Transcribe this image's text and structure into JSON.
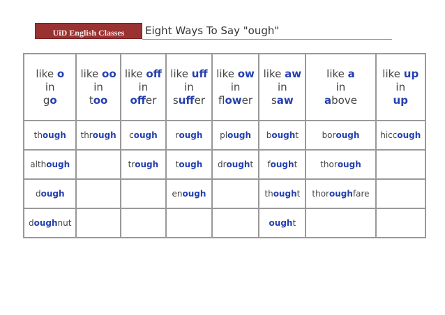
{
  "header": {
    "badge": "UiD English Classes",
    "title": "Eight Ways To Say \"ough\""
  },
  "accent": "#2440b0",
  "badge_color": "#9b3232",
  "columns": [
    {
      "like": "like",
      "sound": "o",
      "in": "in",
      "pre": "g",
      "hi": "o",
      "post": ""
    },
    {
      "like": "like",
      "sound": "oo",
      "in": "in",
      "pre": "t",
      "hi": "oo",
      "post": ""
    },
    {
      "like": "like",
      "sound": "off",
      "in": "in",
      "pre": "",
      "hi": "off",
      "post": "er"
    },
    {
      "like": "like",
      "sound": "uff",
      "in": "in",
      "pre": "s",
      "hi": "uff",
      "post": "er"
    },
    {
      "like": "like",
      "sound": "ow",
      "in": "in",
      "pre": "fl",
      "hi": "ow",
      "post": "er"
    },
    {
      "like": "like",
      "sound": "aw",
      "in": "in",
      "pre": "s",
      "hi": "aw",
      "post": ""
    },
    {
      "like": "like",
      "sound": "a",
      "in": "in",
      "pre": "",
      "hi": "a",
      "post": "bove"
    },
    {
      "like": "like",
      "sound": "up",
      "in": "in",
      "pre": "",
      "hi": "up",
      "post": ""
    }
  ],
  "rows": [
    [
      {
        "pre": "th",
        "hi": "ough",
        "post": ""
      },
      {
        "pre": "thr",
        "hi": "ough",
        "post": ""
      },
      {
        "pre": "c",
        "hi": "ough",
        "post": ""
      },
      {
        "pre": "r",
        "hi": "ough",
        "post": ""
      },
      {
        "pre": "pl",
        "hi": "ough",
        "post": ""
      },
      {
        "pre": "b",
        "hi": "ough",
        "post": "t"
      },
      {
        "pre": "bor",
        "hi": "ough",
        "post": ""
      },
      {
        "pre": "hicc",
        "hi": "ough",
        "post": ""
      }
    ],
    [
      {
        "pre": "alth",
        "hi": "ough",
        "post": ""
      },
      null,
      {
        "pre": "tr",
        "hi": "ough",
        "post": ""
      },
      {
        "pre": "t",
        "hi": "ough",
        "post": ""
      },
      {
        "pre": "dr",
        "hi": "ough",
        "post": "t"
      },
      {
        "pre": "f",
        "hi": "ough",
        "post": "t"
      },
      {
        "pre": "thor",
        "hi": "ough",
        "post": ""
      },
      null
    ],
    [
      {
        "pre": "d",
        "hi": "ough",
        "post": ""
      },
      null,
      null,
      {
        "pre": "en",
        "hi": "ough",
        "post": ""
      },
      null,
      {
        "pre": "th",
        "hi": "ough",
        "post": "t"
      },
      {
        "pre": "thor",
        "hi": "ough",
        "post": "fare"
      },
      null
    ],
    [
      {
        "pre": "d",
        "hi": "ough",
        "post": "nut"
      },
      null,
      null,
      null,
      null,
      {
        "pre": "",
        "hi": "ough",
        "post": "t"
      },
      null,
      null
    ]
  ]
}
